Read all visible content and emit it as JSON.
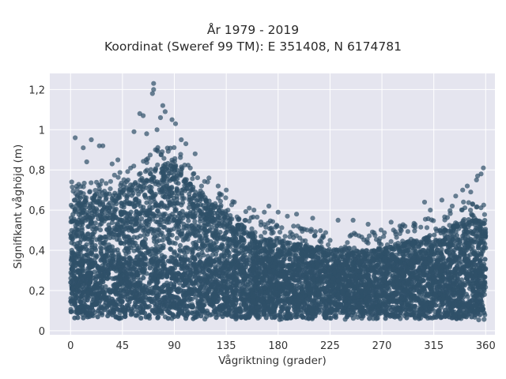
{
  "chart_data": {
    "type": "scatter",
    "title": "År 1979 - 2019",
    "subtitle": "Koordinat (Sweref 99 TM): E 351408, N 6174781",
    "xlabel": "Vågriktning (grader)",
    "ylabel": "Signifikant våghöjd (m)",
    "xlim": [
      -18,
      368
    ],
    "ylim": [
      -0.02,
      1.28
    ],
    "xticks": [
      0,
      45,
      90,
      135,
      180,
      225,
      270,
      315,
      360
    ],
    "xtick_labels": [
      "0",
      "45",
      "90",
      "135",
      "180",
      "225",
      "270",
      "315",
      "360"
    ],
    "yticks": [
      0,
      0.2,
      0.4,
      0.6,
      0.8,
      1,
      1.2
    ],
    "ytick_labels": [
      "0",
      "0,2",
      "0,4",
      "0,6",
      "0,8",
      "1",
      "1,2"
    ],
    "grid": true,
    "background": "#e5e5ef",
    "marker_color": "#2f5068",
    "upper_envelope": {
      "x": [
        0,
        10,
        20,
        30,
        40,
        50,
        60,
        70,
        80,
        85,
        90,
        100,
        110,
        120,
        130,
        140,
        150,
        160,
        170,
        180,
        200,
        220,
        240,
        260,
        280,
        300,
        310,
        320,
        330,
        340,
        350,
        360
      ],
      "y": [
        0.62,
        0.66,
        0.68,
        0.68,
        0.7,
        0.72,
        0.75,
        0.8,
        0.84,
        0.85,
        0.83,
        0.76,
        0.7,
        0.66,
        0.6,
        0.56,
        0.52,
        0.48,
        0.46,
        0.45,
        0.43,
        0.41,
        0.4,
        0.4,
        0.43,
        0.45,
        0.47,
        0.5,
        0.52,
        0.55,
        0.56,
        0.55
      ]
    },
    "outliers": [
      {
        "x": 72,
        "y": 1.23
      },
      {
        "x": 72,
        "y": 1.2
      },
      {
        "x": 71,
        "y": 1.18
      },
      {
        "x": 80,
        "y": 1.12
      },
      {
        "x": 82,
        "y": 1.09
      },
      {
        "x": 78,
        "y": 1.06
      },
      {
        "x": 60,
        "y": 1.08
      },
      {
        "x": 63,
        "y": 1.07
      },
      {
        "x": 88,
        "y": 1.05
      },
      {
        "x": 91,
        "y": 1.03
      },
      {
        "x": 75,
        "y": 1.0
      },
      {
        "x": 55,
        "y": 0.99
      },
      {
        "x": 4,
        "y": 0.96
      },
      {
        "x": 18,
        "y": 0.95
      },
      {
        "x": 25,
        "y": 0.92
      },
      {
        "x": 28,
        "y": 0.92
      },
      {
        "x": 11,
        "y": 0.91
      },
      {
        "x": 66,
        "y": 0.98
      },
      {
        "x": 1,
        "y": 0.74
      },
      {
        "x": 14,
        "y": 0.84
      },
      {
        "x": 41,
        "y": 0.85
      },
      {
        "x": 36,
        "y": 0.83
      },
      {
        "x": 172,
        "y": 0.62
      },
      {
        "x": 168,
        "y": 0.59
      },
      {
        "x": 159,
        "y": 0.6
      },
      {
        "x": 142,
        "y": 0.64
      },
      {
        "x": 155,
        "y": 0.61
      },
      {
        "x": 210,
        "y": 0.56
      },
      {
        "x": 232,
        "y": 0.55
      },
      {
        "x": 245,
        "y": 0.55
      },
      {
        "x": 258,
        "y": 0.53
      },
      {
        "x": 278,
        "y": 0.54
      },
      {
        "x": 290,
        "y": 0.52
      },
      {
        "x": 307,
        "y": 0.64
      },
      {
        "x": 312,
        "y": 0.6
      },
      {
        "x": 322,
        "y": 0.65
      },
      {
        "x": 331,
        "y": 0.62
      },
      {
        "x": 340,
        "y": 0.7
      },
      {
        "x": 344,
        "y": 0.72
      },
      {
        "x": 352,
        "y": 0.75
      },
      {
        "x": 356,
        "y": 0.78
      },
      {
        "x": 358,
        "y": 0.81
      },
      {
        "x": 353,
        "y": 0.77
      },
      {
        "x": 347,
        "y": 0.69
      },
      {
        "x": 334,
        "y": 0.67
      },
      {
        "x": 196,
        "y": 0.58
      },
      {
        "x": 188,
        "y": 0.57
      },
      {
        "x": 180,
        "y": 0.59
      },
      {
        "x": 100,
        "y": 0.93
      },
      {
        "x": 108,
        "y": 0.88
      },
      {
        "x": 96,
        "y": 0.95
      },
      {
        "x": 120,
        "y": 0.76
      },
      {
        "x": 128,
        "y": 0.72
      },
      {
        "x": 135,
        "y": 0.7
      }
    ]
  }
}
